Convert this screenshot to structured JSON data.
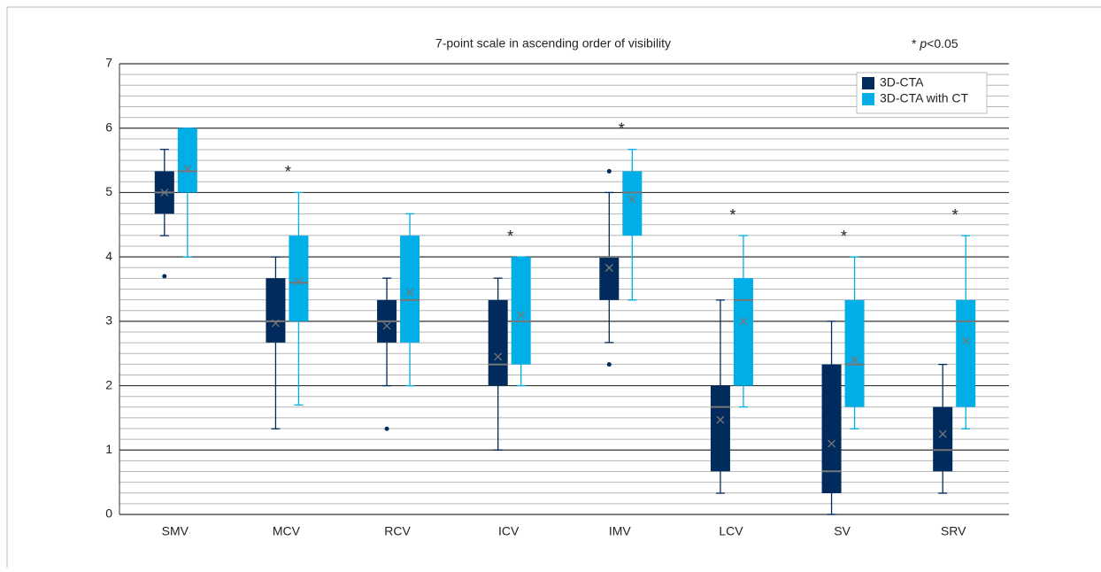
{
  "chart_data": {
    "type": "box",
    "title": "7-point scale in ascending order of visibility",
    "significance": {
      "marker": "*",
      "variable": "p",
      "threshold": "<0.05",
      "flags": [
        false,
        true,
        false,
        true,
        true,
        true,
        true,
        true
      ]
    },
    "categories": [
      "SMV",
      "MCV",
      "RCV",
      "ICV",
      "IMV",
      "LCV",
      "SV",
      "SRV"
    ],
    "series": [
      {
        "name": "3D-CTA",
        "color": "#002b5c",
        "max": [
          5.67,
          4.0,
          3.67,
          3.67,
          5.0,
          3.33,
          3.0,
          2.33
        ],
        "q3": [
          5.33,
          3.67,
          3.33,
          3.33,
          4.0,
          2.0,
          2.33,
          1.67
        ],
        "median": [
          5.0,
          3.0,
          3.0,
          2.33,
          4.0,
          1.67,
          0.67,
          1.0
        ],
        "q1": [
          4.67,
          2.67,
          2.67,
          2.0,
          3.33,
          0.67,
          0.33,
          0.67
        ],
        "min": [
          4.33,
          1.33,
          2.0,
          1.0,
          2.67,
          0.33,
          0.0,
          0.33
        ],
        "mean": [
          5.0,
          2.97,
          2.93,
          2.45,
          3.83,
          1.47,
          1.1,
          1.25
        ],
        "outliers": [
          [
            3.7
          ],
          [],
          [
            1.33
          ],
          [],
          [
            5.33,
            2.33
          ],
          [],
          [],
          []
        ]
      },
      {
        "name": "3D-CTA with CT",
        "color": "#00aee8",
        "max": [
          6.0,
          5.0,
          4.67,
          4.0,
          5.67,
          4.33,
          4.0,
          4.33
        ],
        "q3": [
          6.0,
          4.33,
          4.33,
          4.0,
          5.33,
          3.67,
          3.33,
          3.33
        ],
        "median": [
          5.33,
          3.6,
          3.33,
          3.0,
          5.0,
          3.33,
          2.33,
          3.0
        ],
        "q1": [
          5.0,
          3.0,
          2.67,
          2.33,
          4.33,
          2.0,
          1.67,
          1.67
        ],
        "min": [
          4.0,
          1.7,
          2.0,
          2.0,
          3.33,
          1.67,
          1.33,
          1.33
        ],
        "mean": [
          5.37,
          3.62,
          3.45,
          3.1,
          4.9,
          3.0,
          2.4,
          2.7
        ],
        "outliers": [
          [],
          [],
          [],
          [],
          [],
          [],
          [],
          []
        ]
      }
    ],
    "ylim": [
      0,
      7
    ],
    "yticks": [
      0,
      1,
      2,
      3,
      4,
      5,
      6,
      7
    ],
    "grid": true,
    "minor_grid_per_tick": 6,
    "legend": "top-right"
  }
}
